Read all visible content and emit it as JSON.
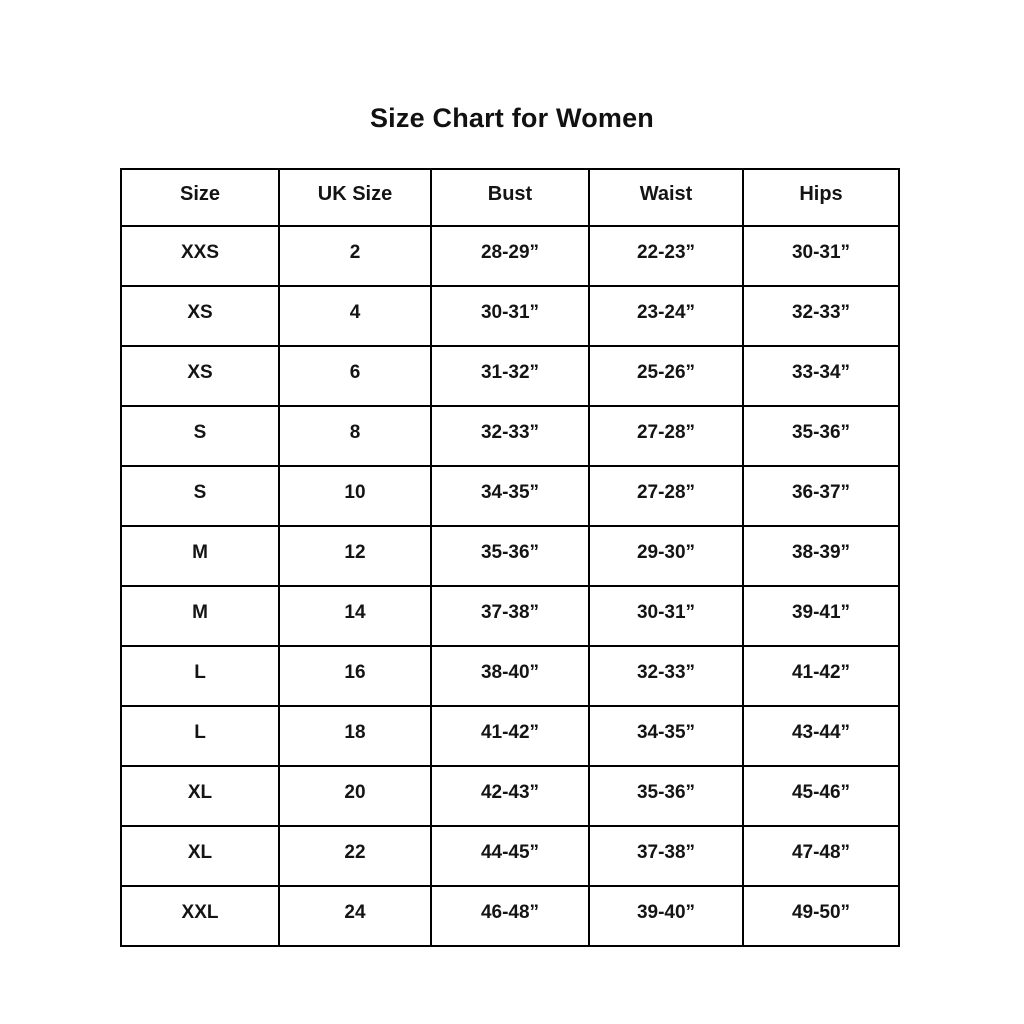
{
  "title": "Size Chart for Women",
  "chart_data": {
    "type": "table",
    "title": "Size Chart for Women",
    "columns": [
      "Size",
      "UK Size",
      "Bust",
      "Waist",
      "Hips"
    ],
    "rows": [
      {
        "size": "XXS",
        "uk_size": "2",
        "bust": "28-29”",
        "waist": "22-23”",
        "hips": "30-31”"
      },
      {
        "size": "XS",
        "uk_size": "4",
        "bust": "30-31”",
        "waist": "23-24”",
        "hips": "32-33”"
      },
      {
        "size": "XS",
        "uk_size": "6",
        "bust": "31-32”",
        "waist": "25-26”",
        "hips": "33-34”"
      },
      {
        "size": "S",
        "uk_size": "8",
        "bust": "32-33”",
        "waist": "27-28”",
        "hips": "35-36”"
      },
      {
        "size": "S",
        "uk_size": "10",
        "bust": "34-35”",
        "waist": "27-28”",
        "hips": "36-37”"
      },
      {
        "size": "M",
        "uk_size": "12",
        "bust": "35-36”",
        "waist": "29-30”",
        "hips": "38-39”"
      },
      {
        "size": "M",
        "uk_size": "14",
        "bust": "37-38”",
        "waist": "30-31”",
        "hips": "39-41”"
      },
      {
        "size": "L",
        "uk_size": "16",
        "bust": "38-40”",
        "waist": "32-33”",
        "hips": "41-42”"
      },
      {
        "size": "L",
        "uk_size": "18",
        "bust": "41-42”",
        "waist": "34-35”",
        "hips": "43-44”"
      },
      {
        "size": "XL",
        "uk_size": "20",
        "bust": "42-43”",
        "waist": "35-36”",
        "hips": "45-46”"
      },
      {
        "size": "XL",
        "uk_size": "22",
        "bust": "44-45”",
        "waist": "37-38”",
        "hips": "47-48”"
      },
      {
        "size": "XXL",
        "uk_size": "24",
        "bust": "46-48”",
        "waist": "39-40”",
        "hips": "49-50”"
      }
    ]
  }
}
